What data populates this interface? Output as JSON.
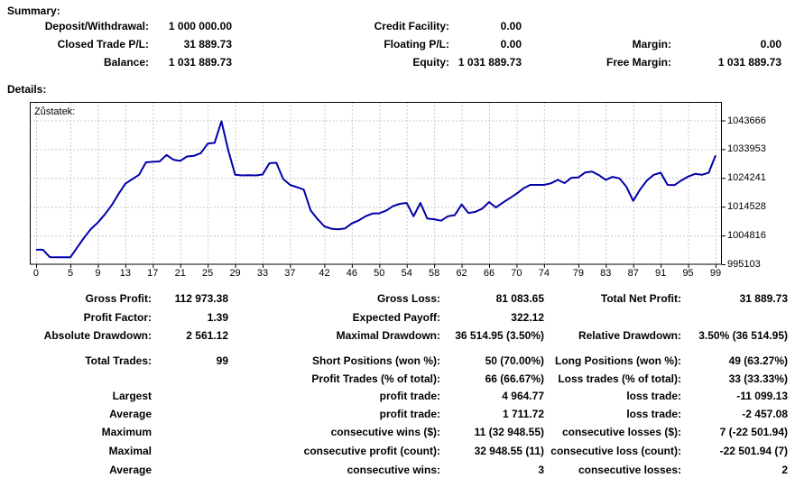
{
  "summary": {
    "heading": "Summary:",
    "rows": [
      [
        "Deposit/Withdrawal:",
        "1 000 000.00",
        "Credit Facility:",
        "0.00",
        "",
        ""
      ],
      [
        "Closed Trade P/L:",
        "31 889.73",
        "Floating P/L:",
        "0.00",
        "Margin:",
        "0.00"
      ],
      [
        "Balance:",
        "1 031 889.73",
        "Equity:",
        "1 031 889.73",
        "Free Margin:",
        "1 031 889.73"
      ]
    ]
  },
  "details": {
    "heading": "Details:",
    "rows": [
      [
        "Gross Profit:",
        "112 973.38",
        "Gross Loss:",
        "81 083.65",
        "Total Net Profit:",
        "31 889.73"
      ],
      [
        "Profit Factor:",
        "1.39",
        "Expected Payoff:",
        "322.12",
        "",
        ""
      ],
      [
        "Absolute Drawdown:",
        "2 561.12",
        "Maximal Drawdown:",
        "36 514.95 (3.50%)",
        "Relative Drawdown:",
        "3.50% (36 514.95)"
      ],
      [
        "Total Trades:",
        "99",
        "Short Positions (won %):",
        "50 (70.00%)",
        "Long Positions (won %):",
        "49 (63.27%)"
      ],
      [
        "",
        "",
        "Profit Trades (% of total):",
        "66 (66.67%)",
        "Loss trades (% of total):",
        "33 (33.33%)"
      ],
      [
        "Largest",
        "",
        "profit trade:",
        "4 964.77",
        "loss trade:",
        "-11 099.13"
      ],
      [
        "Average",
        "",
        "profit trade:",
        "1 711.72",
        "loss trade:",
        "-2 457.08"
      ],
      [
        "Maximum",
        "",
        "consecutive wins ($):",
        "11 (32 948.55)",
        "consecutive losses ($):",
        "7 (-22 501.94)"
      ],
      [
        "Maximal",
        "",
        "consecutive profit (count):",
        "32 948.55 (11)",
        "consecutive loss (count):",
        "-22 501.94 (7)"
      ],
      [
        "Average",
        "",
        "consecutive wins:",
        "3",
        "consecutive losses:",
        "2"
      ]
    ]
  },
  "chart_data": {
    "type": "line",
    "title": "Zůstatek:",
    "xlabel": "",
    "ylabel": "",
    "series_name": "Balance",
    "x_ticks": [
      0,
      5,
      9,
      13,
      17,
      21,
      25,
      29,
      33,
      37,
      42,
      46,
      50,
      54,
      58,
      62,
      66,
      70,
      74,
      79,
      83,
      87,
      91,
      95,
      99
    ],
    "y_ticks": [
      995103,
      1004816,
      1014528,
      1024241,
      1033953,
      1043666
    ],
    "xlim": [
      -0.92,
      99.92
    ],
    "ylim": [
      995103,
      1049908
    ],
    "grid": true,
    "legend_position": "none",
    "line_color": "#0000A8",
    "grid_color": "#c8c8c8",
    "x": [
      0,
      1,
      2,
      3,
      4,
      5,
      6,
      7,
      8,
      9,
      10,
      11,
      12,
      13,
      14,
      15,
      16,
      17,
      18,
      19,
      20,
      21,
      22,
      23,
      24,
      25,
      26,
      27,
      28,
      29,
      30,
      31,
      32,
      33,
      34,
      35,
      36,
      37,
      38,
      39,
      40,
      41,
      42,
      43,
      44,
      45,
      46,
      47,
      48,
      49,
      50,
      51,
      52,
      53,
      54,
      55,
      56,
      57,
      58,
      59,
      60,
      61,
      62,
      63,
      64,
      65,
      66,
      67,
      68,
      69,
      70,
      71,
      72,
      73,
      74,
      75,
      76,
      77,
      78,
      79,
      80,
      81,
      82,
      83,
      84,
      85,
      86,
      87,
      88,
      89,
      90,
      91,
      92,
      93,
      94,
      95,
      96,
      97,
      98,
      99
    ],
    "values": [
      1000000,
      1000000,
      997500,
      997439,
      997439,
      997439,
      1000800,
      1004100,
      1007000,
      1009200,
      1011900,
      1015000,
      1018800,
      1022300,
      1023800,
      1025300,
      1029500,
      1029700,
      1029800,
      1032000,
      1030400,
      1030000,
      1031500,
      1031700,
      1032600,
      1035800,
      1036100,
      1043400,
      1033500,
      1025300,
      1025100,
      1025200,
      1025100,
      1025400,
      1029200,
      1029400,
      1023900,
      1021900,
      1021100,
      1020300,
      1013300,
      1010400,
      1007900,
      1007100,
      1006900,
      1007200,
      1008900,
      1009900,
      1011300,
      1012200,
      1012300,
      1013200,
      1014700,
      1015500,
      1015800,
      1011300,
      1015800,
      1010500,
      1010300,
      1009800,
      1011300,
      1011700,
      1015300,
      1012400,
      1012800,
      1013900,
      1016100,
      1014250,
      1015900,
      1017400,
      1018900,
      1020700,
      1021900,
      1021900,
      1021900,
      1022400,
      1023600,
      1022500,
      1024300,
      1024400,
      1026100,
      1026400,
      1025200,
      1023600,
      1024600,
      1024100,
      1021300,
      1016500,
      1020300,
      1023400,
      1025300,
      1026000,
      1021900,
      1021800,
      1023400,
      1024700,
      1025600,
      1025300,
      1026000,
      1031889.73
    ]
  }
}
